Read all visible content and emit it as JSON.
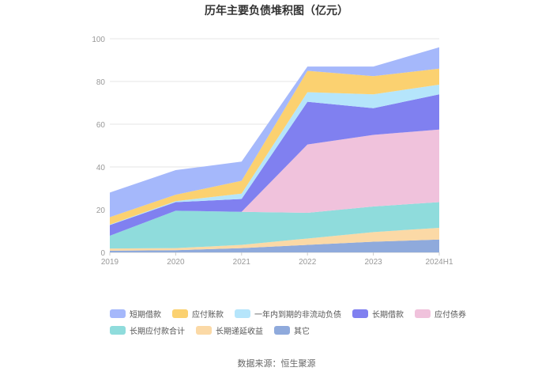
{
  "chart_data": {
    "type": "area",
    "stacked": true,
    "title": "历年主要负债堆积图（亿元）",
    "source": "数据来源：恒生聚源",
    "x": [
      "2019",
      "2020",
      "2021",
      "2022",
      "2023",
      "2024H1"
    ],
    "yticks": [
      "0",
      "20",
      "40",
      "60",
      "80",
      "100"
    ],
    "ylim": [
      0,
      100
    ],
    "grid": true,
    "legend_position": "bottom",
    "series": [
      {
        "name": "其它",
        "color": "#8faadc",
        "values": [
          0.8,
          1.0,
          2.0,
          3.5,
          5.0,
          6.0
        ]
      },
      {
        "name": "长期递延收益",
        "color": "#fbd9a6",
        "values": [
          1.0,
          1.0,
          1.5,
          3.0,
          4.5,
          5.5
        ]
      },
      {
        "name": "长期应付款合计",
        "color": "#8fdcdc",
        "values": [
          6.0,
          17.5,
          15.5,
          12.0,
          12.0,
          12.0
        ]
      },
      {
        "name": "应付债券",
        "color": "#f0c2dc",
        "values": [
          0.0,
          0.0,
          0.0,
          32.0,
          33.5,
          34.0
        ]
      },
      {
        "name": "长期借款",
        "color": "#8080f0",
        "values": [
          5.0,
          4.0,
          6.0,
          20.0,
          12.5,
          16.5
        ]
      },
      {
        "name": "一年内到期的非流动负债",
        "color": "#b5e5fb",
        "values": [
          0.2,
          0.5,
          2.5,
          4.5,
          6.5,
          4.5
        ]
      },
      {
        "name": "应付账款",
        "color": "#fbd170",
        "values": [
          3.5,
          3.0,
          6.0,
          10.0,
          8.5,
          7.5
        ]
      },
      {
        "name": "短期借款",
        "color": "#a5b8fb",
        "values": [
          11.5,
          11.5,
          9.0,
          2.0,
          4.5,
          10.0
        ]
      }
    ]
  },
  "legend_order": [
    {
      "name": "短期借款",
      "color": "#a5b8fb"
    },
    {
      "name": "应付账款",
      "color": "#fbd170"
    },
    {
      "name": "一年内到期的非流动负债",
      "color": "#b5e5fb"
    },
    {
      "name": "长期借款",
      "color": "#8080f0"
    },
    {
      "name": "应付债券",
      "color": "#f0c2dc"
    },
    {
      "name": "长期应付款合计",
      "color": "#8fdcdc"
    },
    {
      "name": "长期递延收益",
      "color": "#fbd9a6"
    },
    {
      "name": "其它",
      "color": "#8faadc"
    }
  ]
}
